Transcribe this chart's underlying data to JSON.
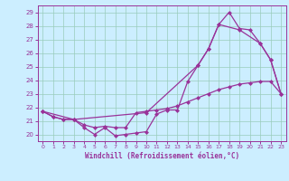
{
  "xlabel": "Windchill (Refroidissement éolien,°C)",
  "bg_color": "#cceeff",
  "line_color": "#993399",
  "grid_color": "#99ccbb",
  "spine_color": "#993399",
  "xlim": [
    -0.5,
    23.5
  ],
  "ylim": [
    19.5,
    29.5
  ],
  "yticks": [
    20,
    21,
    22,
    23,
    24,
    25,
    26,
    27,
    28,
    29
  ],
  "xticks": [
    0,
    1,
    2,
    3,
    4,
    5,
    6,
    7,
    8,
    9,
    10,
    11,
    12,
    13,
    14,
    15,
    16,
    17,
    18,
    19,
    20,
    21,
    22,
    23
  ],
  "line1_x": [
    0,
    1,
    2,
    3,
    4,
    5,
    6,
    7,
    8,
    9,
    10,
    11,
    12,
    13,
    14,
    15,
    16,
    17,
    18,
    19,
    20,
    21,
    22,
    23
  ],
  "line1_y": [
    21.7,
    21.3,
    21.1,
    21.1,
    20.5,
    20.0,
    20.5,
    19.9,
    20.0,
    20.1,
    20.2,
    21.5,
    21.8,
    21.8,
    23.9,
    25.1,
    26.3,
    28.1,
    29.0,
    27.8,
    27.7,
    26.7,
    25.5,
    23.0
  ],
  "line2_x": [
    0,
    1,
    2,
    3,
    4,
    5,
    6,
    7,
    8,
    9,
    10,
    11,
    12,
    13,
    14,
    15,
    16,
    17,
    18,
    19,
    20,
    21,
    22,
    23
  ],
  "line2_y": [
    21.7,
    21.3,
    21.1,
    21.1,
    20.7,
    20.5,
    20.6,
    20.5,
    20.5,
    21.6,
    21.7,
    21.8,
    21.9,
    22.1,
    22.4,
    22.7,
    23.0,
    23.3,
    23.5,
    23.7,
    23.8,
    23.9,
    23.9,
    23.0
  ],
  "line3_x": [
    0,
    3,
    10,
    15,
    16,
    17,
    19,
    21,
    22,
    23
  ],
  "line3_y": [
    21.7,
    21.1,
    21.6,
    25.1,
    26.3,
    28.1,
    27.7,
    26.7,
    25.5,
    23.0
  ]
}
